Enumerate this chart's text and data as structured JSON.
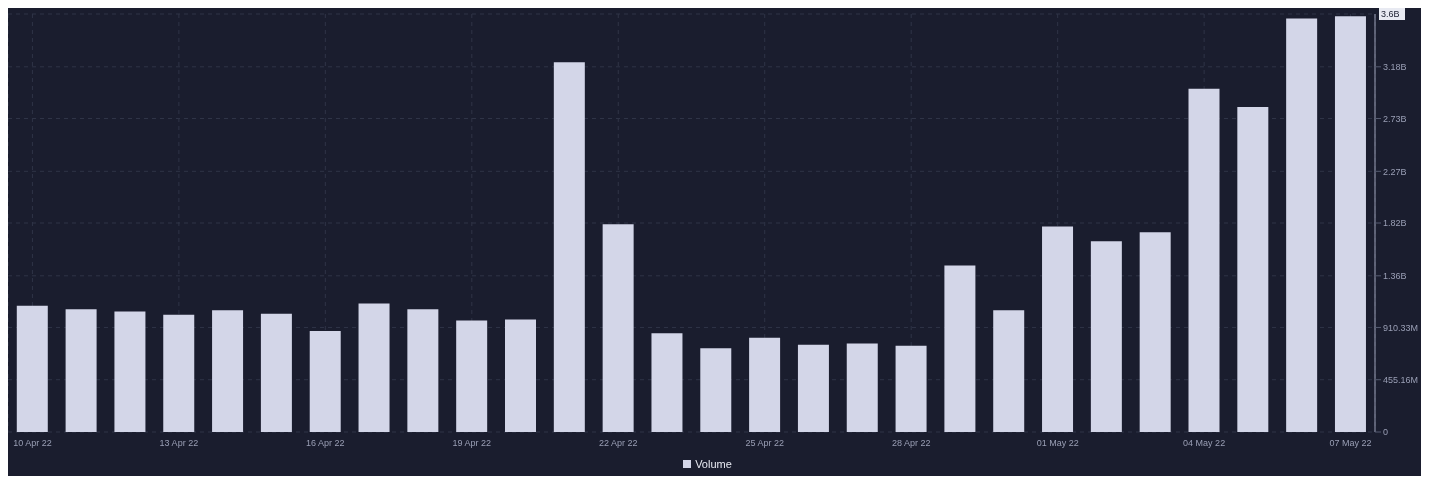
{
  "chart_data": {
    "type": "bar",
    "categories": [
      "10 Apr 22",
      null,
      null,
      "13 Apr 22",
      null,
      null,
      "16 Apr 22",
      null,
      null,
      "19 Apr 22",
      null,
      null,
      "22 Apr 22",
      null,
      null,
      "25 Apr 22",
      null,
      null,
      "28 Apr 22",
      null,
      null,
      "01 May 22",
      null,
      null,
      "04 May 22",
      null,
      null,
      "07 May 22"
    ],
    "series": [
      {
        "name": "Volume",
        "color": "#d3d6e8",
        "values": [
          1100000000,
          1070000000,
          1050000000,
          1020000000,
          1060000000,
          1030000000,
          880000000,
          1120000000,
          1070000000,
          970000000,
          980000000,
          3220000000,
          1810000000,
          860000000,
          730000000,
          820000000,
          760000000,
          770000000,
          750000000,
          1450000000,
          1060000000,
          1790000000,
          1660000000,
          1740000000,
          2990000000,
          2830000000,
          3600000000,
          3620000000
        ]
      }
    ],
    "ylim": [
      0,
      3640000000
    ],
    "yticks": [
      0,
      {
        "value": 455160000,
        "label": "455.16M"
      },
      {
        "value": 910330000,
        "label": "910.33M"
      },
      {
        "value": 1360000000,
        "label": "1.36B"
      },
      {
        "value": 1820000000,
        "label": "1.82B"
      },
      {
        "value": 2270000000,
        "label": "2.27B"
      },
      {
        "value": 2730000000,
        "label": "2.73B"
      },
      {
        "value": 3180000000,
        "label": "3.18B"
      }
    ],
    "annotations": [
      "3.6B"
    ],
    "grid": true,
    "legend": "bottom"
  }
}
